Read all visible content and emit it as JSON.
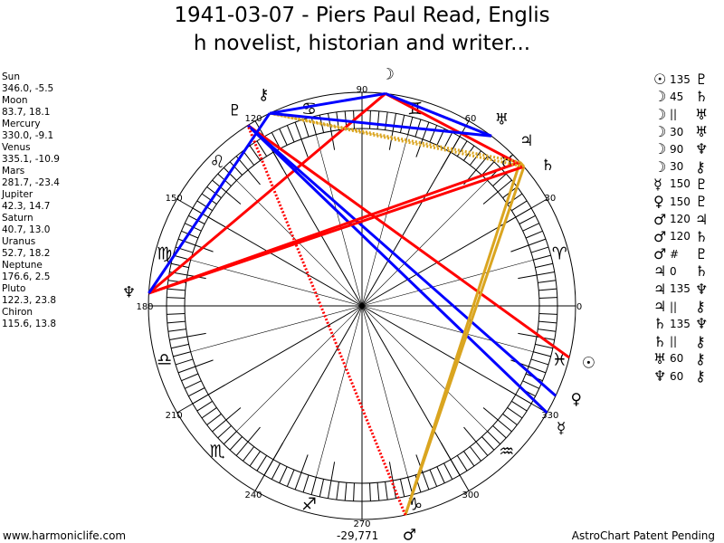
{
  "title": {
    "line1": "1941-03-07 - Piers Paul Read, Englis",
    "line2": "h novelist, historian and writer..."
  },
  "planets": [
    {
      "name": "Sun",
      "glyph": "☉",
      "lon": 346.0,
      "decl": -5.5,
      "coords": "346.0, -5.5"
    },
    {
      "name": "Moon",
      "glyph": "☽",
      "lon": 83.7,
      "decl": 18.1,
      "coords": "83.7, 18.1"
    },
    {
      "name": "Mercury",
      "glyph": "☿",
      "lon": 330.0,
      "decl": -9.1,
      "coords": "330.0, -9.1"
    },
    {
      "name": "Venus",
      "glyph": "♀",
      "lon": 335.1,
      "decl": -10.9,
      "coords": "335.1, -10.9"
    },
    {
      "name": "Mars",
      "glyph": "♂",
      "lon": 281.7,
      "decl": -23.4,
      "coords": "281.7, -23.4"
    },
    {
      "name": "Jupiter",
      "glyph": "♃",
      "lon": 42.3,
      "decl": 14.7,
      "coords": "42.3, 14.7"
    },
    {
      "name": "Saturn",
      "glyph": "♄",
      "lon": 40.7,
      "decl": 13.0,
      "coords": "40.7, 13.0"
    },
    {
      "name": "Uranus",
      "glyph": "♅",
      "lon": 52.7,
      "decl": 18.2,
      "coords": "52.7, 18.2"
    },
    {
      "name": "Neptune",
      "glyph": "♆",
      "lon": 176.6,
      "decl": 2.5,
      "coords": "176.6, 2.5"
    },
    {
      "name": "Pluto",
      "glyph": "♇",
      "lon": 122.3,
      "decl": 23.8,
      "coords": "122.3, 23.8"
    },
    {
      "name": "Chiron",
      "glyph": "⚷",
      "lon": 115.6,
      "decl": 13.8,
      "coords": "115.6, 13.8"
    }
  ],
  "aspects": [
    {
      "p1": "☉",
      "a": "135",
      "p2": "♇",
      "from": 0,
      "to": 9,
      "color": "#ff0000",
      "style": "solid"
    },
    {
      "p1": "☽",
      "a": "45",
      "p2": "♄",
      "from": 1,
      "to": 6,
      "color": "#ff0000",
      "style": "solid"
    },
    {
      "p1": "☽",
      "a": "||",
      "p2": "♅",
      "from": 1,
      "to": 7,
      "color": "#daa520",
      "style": "dotted"
    },
    {
      "p1": "☽",
      "a": "30",
      "p2": "♅",
      "from": 1,
      "to": 7,
      "color": "#0000ff",
      "style": "solid"
    },
    {
      "p1": "☽",
      "a": "90",
      "p2": "♆",
      "from": 1,
      "to": 8,
      "color": "#ff0000",
      "style": "solid"
    },
    {
      "p1": "☽",
      "a": "30",
      "p2": "⚷",
      "from": 1,
      "to": 10,
      "color": "#0000ff",
      "style": "solid"
    },
    {
      "p1": "☿",
      "a": "150",
      "p2": "♇",
      "from": 2,
      "to": 9,
      "color": "#0000ff",
      "style": "solid"
    },
    {
      "p1": "♀",
      "a": "150",
      "p2": "♇",
      "from": 3,
      "to": 9,
      "color": "#0000ff",
      "style": "solid"
    },
    {
      "p1": "♂",
      "a": "120",
      "p2": "♃",
      "from": 4,
      "to": 5,
      "color": "#daa520",
      "style": "solid"
    },
    {
      "p1": "♂",
      "a": "120",
      "p2": "♄",
      "from": 4,
      "to": 6,
      "color": "#daa520",
      "style": "solid"
    },
    {
      "p1": "♂",
      "a": "#",
      "p2": "♇",
      "from": 4,
      "to": 9,
      "color": "#ff0000",
      "style": "dotted"
    },
    {
      "p1": "♃",
      "a": "0",
      "p2": "♄",
      "from": 5,
      "to": 6,
      "color": "#daa520",
      "style": "solid"
    },
    {
      "p1": "♃",
      "a": "135",
      "p2": "♆",
      "from": 5,
      "to": 8,
      "color": "#ff0000",
      "style": "solid"
    },
    {
      "p1": "♃",
      "a": "||",
      "p2": "⚷",
      "from": 5,
      "to": 10,
      "color": "#daa520",
      "style": "dotted"
    },
    {
      "p1": "♄",
      "a": "135",
      "p2": "♆",
      "from": 6,
      "to": 8,
      "color": "#ff0000",
      "style": "solid"
    },
    {
      "p1": "♄",
      "a": "||",
      "p2": "⚷",
      "from": 6,
      "to": 10,
      "color": "#daa520",
      "style": "dotted"
    },
    {
      "p1": "♅",
      "a": "60",
      "p2": "⚷",
      "from": 7,
      "to": 10,
      "color": "#0000ff",
      "style": "solid"
    },
    {
      "p1": "♆",
      "a": "60",
      "p2": "⚷",
      "from": 8,
      "to": 10,
      "color": "#0000ff",
      "style": "solid"
    }
  ],
  "signs": [
    "♈",
    "♉",
    "♊",
    "♋",
    "♌",
    "♍",
    "♎",
    "♏",
    "♐",
    "♑",
    "♒",
    "♓"
  ],
  "degree_labels": [
    "0",
    "30",
    "60",
    "90",
    "120",
    "150",
    "180",
    "210",
    "240",
    "270",
    "300",
    "330"
  ],
  "footer": {
    "left": "www.harmoniclife.com",
    "center": "-29,771",
    "right": "AstroChart Patent Pending"
  }
}
